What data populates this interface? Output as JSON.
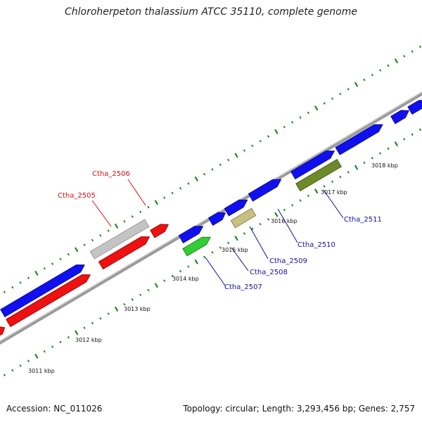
{
  "title": "Chloroherpeton thalassium ATCC 35110, complete genome",
  "footer": {
    "accession": "Accession: NC_011026",
    "summary": "Topology: circular; Length: 3,293,456 bp; Genes: 2,757"
  },
  "colors": {
    "backbone": "#8a8a8a",
    "tick": "#1f8a1f",
    "forward": "#1010ee",
    "reverse": "#ee1111",
    "grey": "#c4c4c4",
    "green": "#33cc33",
    "khaki": "#c8c080",
    "olive": "#6f8a2a",
    "red_label": "#d01010",
    "blue_label": "#1010a0"
  },
  "kbp_labels": [
    "3011 kbp",
    "3012 kbp",
    "3013 kbp",
    "3014 kbp",
    "3015 kbp",
    "3016 kbp",
    "3017 kbp",
    "3018 kbp"
  ],
  "gene_labels": [
    "Ctha_2506",
    "Ctha_2505",
    "Ctha_2507",
    "Ctha_2508",
    "Ctha_2509",
    "Ctha_2510",
    "Ctha_2511"
  ]
}
